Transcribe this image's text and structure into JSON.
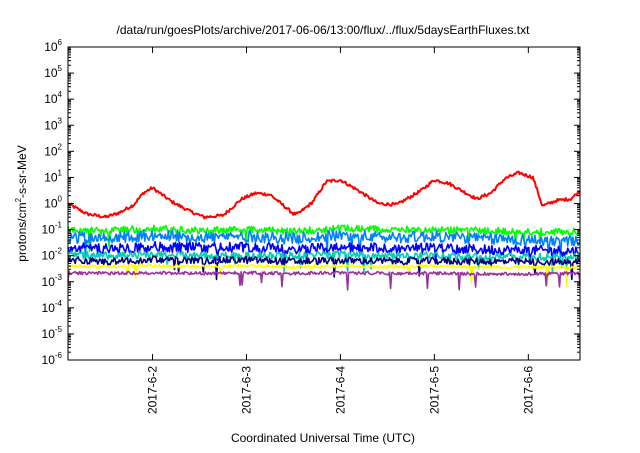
{
  "chart_data": {
    "type": "line",
    "title": "/data/run/goesPlots/archive/2017-06-06/13:00/flux/../flux/5daysEarthFluxes.txt",
    "xlabel": "Coordinated Universal Time (UTC)",
    "ylabel_main": "protons/cm",
    "ylabel_sup": "2",
    "ylabel_rest": "-s-sr-MeV",
    "yscale": "log",
    "ylim_exp": [
      -6,
      6
    ],
    "y_ticks": [
      {
        "base": "10",
        "exp": "-6"
      },
      {
        "base": "10",
        "exp": "-5"
      },
      {
        "base": "10",
        "exp": "-4"
      },
      {
        "base": "10",
        "exp": "-3"
      },
      {
        "base": "10",
        "exp": "-2"
      },
      {
        "base": "10",
        "exp": "-1"
      },
      {
        "base": "10",
        "exp": "0"
      },
      {
        "base": "10",
        "exp": "1"
      },
      {
        "base": "10",
        "exp": "2"
      },
      {
        "base": "10",
        "exp": "3"
      },
      {
        "base": "10",
        "exp": "4"
      },
      {
        "base": "10",
        "exp": "5"
      },
      {
        "base": "10",
        "exp": "6"
      }
    ],
    "xlim_days": [
      1.1,
      6.55
    ],
    "x_ticks": [
      {
        "label": "2017-6-2",
        "day": 2
      },
      {
        "label": "2017-6-3",
        "day": 3
      },
      {
        "label": "2017-6-4",
        "day": 4
      },
      {
        "label": "2017-6-5",
        "day": 5
      },
      {
        "label": "2017-6-6",
        "day": 6
      }
    ],
    "grid": false,
    "series": [
      {
        "color": "#ff0000",
        "noise": 0.06,
        "x": [
          1.1,
          1.3,
          1.5,
          1.65,
          1.8,
          1.9,
          2.0,
          2.2,
          2.4,
          2.55,
          2.75,
          2.95,
          3.1,
          3.25,
          3.4,
          3.5,
          3.55,
          3.7,
          3.85,
          4.0,
          4.2,
          4.4,
          4.6,
          4.85,
          5.0,
          5.15,
          5.3,
          5.45,
          5.6,
          5.75,
          5.9,
          6.05,
          6.15,
          6.3,
          6.45,
          6.55
        ],
        "y": [
          1.0,
          0.4,
          0.3,
          0.45,
          0.9,
          2.5,
          4.0,
          1.2,
          0.5,
          0.3,
          0.35,
          1.5,
          2.5,
          2.2,
          0.8,
          0.4,
          0.4,
          1.1,
          7,
          8,
          3,
          1.0,
          0.9,
          3,
          8,
          6,
          3,
          1.5,
          2.5,
          9,
          15,
          10,
          0.8,
          1.3,
          1.5,
          3.0
        ]
      },
      {
        "color": "#00ff00",
        "noise": 0.14,
        "x": [
          1.1,
          1.5,
          2.0,
          2.5,
          3.0,
          3.5,
          4.0,
          4.5,
          5.0,
          5.5,
          6.0,
          6.55
        ],
        "y": [
          0.1,
          0.09,
          0.11,
          0.09,
          0.1,
          0.085,
          0.11,
          0.1,
          0.1,
          0.09,
          0.085,
          0.08
        ]
      },
      {
        "color": "#0080ff",
        "noise": 0.22,
        "x": [
          1.1,
          1.5,
          2.0,
          2.5,
          3.0,
          3.5,
          4.0,
          4.5,
          5.0,
          5.5,
          6.0,
          6.55
        ],
        "y": [
          0.05,
          0.045,
          0.06,
          0.05,
          0.055,
          0.045,
          0.06,
          0.05,
          0.055,
          0.045,
          0.04,
          0.035
        ]
      },
      {
        "color": "#0000ff",
        "noise": 0.2,
        "x": [
          1.1,
          1.5,
          2.0,
          2.5,
          3.0,
          3.5,
          4.0,
          4.5,
          5.0,
          5.5,
          6.0,
          6.55
        ],
        "y": [
          0.02,
          0.018,
          0.022,
          0.02,
          0.021,
          0.018,
          0.02,
          0.02,
          0.019,
          0.017,
          0.016,
          0.015
        ]
      },
      {
        "color": "#00d0b0",
        "noise": 0.14,
        "x": [
          1.1,
          1.5,
          2.0,
          2.5,
          3.0,
          3.5,
          4.0,
          4.5,
          5.0,
          5.5,
          6.0,
          6.55
        ],
        "y": [
          0.011,
          0.01,
          0.011,
          0.01,
          0.01,
          0.01,
          0.011,
          0.01,
          0.01,
          0.009,
          0.009,
          0.009
        ]
      },
      {
        "color": "#000080",
        "noise": 0.14,
        "x": [
          1.1,
          1.5,
          2.0,
          2.5,
          3.0,
          3.5,
          4.0,
          4.5,
          5.0,
          5.5,
          6.0,
          6.55
        ],
        "y": [
          0.007,
          0.006,
          0.007,
          0.0065,
          0.0068,
          0.006,
          0.0065,
          0.0062,
          0.0063,
          0.006,
          0.0058,
          0.0055
        ]
      },
      {
        "color": "#ffff00",
        "noise": 0.06,
        "x": [
          1.1,
          1.5,
          2.0,
          2.5,
          3.0,
          3.5,
          4.0,
          4.5,
          5.0,
          5.5,
          6.0,
          6.55
        ],
        "y": [
          0.004,
          0.0038,
          0.0042,
          0.0038,
          0.004,
          0.0037,
          0.004,
          0.0038,
          0.0039,
          0.0037,
          0.0036,
          0.0035
        ]
      },
      {
        "color": "#993399",
        "noise": 0.06,
        "x": [
          1.1,
          1.5,
          2.0,
          2.5,
          3.0,
          3.5,
          4.0,
          4.5,
          5.0,
          5.5,
          6.0,
          6.55
        ],
        "y": [
          0.0022,
          0.0021,
          0.0022,
          0.0021,
          0.0022,
          0.0021,
          0.0022,
          0.0021,
          0.0021,
          0.002,
          0.002,
          0.0021
        ]
      }
    ]
  }
}
